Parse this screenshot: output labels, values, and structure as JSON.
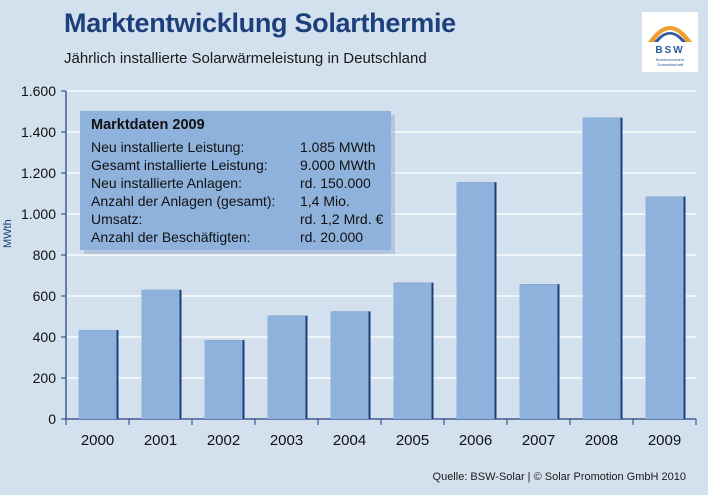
{
  "header": {
    "title": "Marktentwicklung Solarthermie",
    "subtitle": "Jährlich installierte Solarwärmeleistung in Deutschland"
  },
  "logo": {
    "text": "BSW",
    "subtext": "Bundesverband Solarwirtschaft"
  },
  "source": "Quelle: BSW-Solar | © Solar Promotion GmbH 2010",
  "infobox": {
    "title": "Marktdaten 2009",
    "rows": [
      {
        "label": "Neu installierte Leistung:",
        "value": "1.085 MWth"
      },
      {
        "label": "Gesamt installierte Leistung:",
        "value": "9.000 MWth"
      },
      {
        "label": "Neu installierte Anlagen:",
        "value": "rd. 150.000"
      },
      {
        "label": "Anzahl der Anlagen (gesamt):",
        "value": "1,4 Mio."
      },
      {
        "label": "Umsatz:",
        "value": "rd. 1,2 Mrd. €"
      },
      {
        "label": "Anzahl der Beschäftigten:",
        "value": "rd. 20.000"
      }
    ]
  },
  "colors": {
    "background": "#d3e0ee",
    "bar": "#8fb2dc",
    "bar_shadow": "#1d3f7c",
    "title": "#1d3f7c"
  },
  "chart_data": {
    "type": "bar",
    "title": "Marktentwicklung Solarthermie",
    "subtitle": "Jährlich installierte Solarwärmeleistung in Deutschland",
    "xlabel": "",
    "ylabel": "MWth",
    "categories": [
      "2000",
      "2001",
      "2002",
      "2003",
      "2004",
      "2005",
      "2006",
      "2007",
      "2008",
      "2009"
    ],
    "values": [
      434,
      630,
      385,
      504,
      525,
      665,
      1155,
      658,
      1470,
      1085
    ],
    "ylim": [
      0,
      1600
    ],
    "yticks": [
      0,
      200,
      400,
      600,
      800,
      1000,
      1200,
      1400,
      1600
    ],
    "ytick_labels": [
      "0",
      "200",
      "400",
      "600",
      "800",
      "1.000",
      "1.200",
      "1.400",
      "1.600"
    ],
    "grid": true,
    "legend": "none"
  }
}
